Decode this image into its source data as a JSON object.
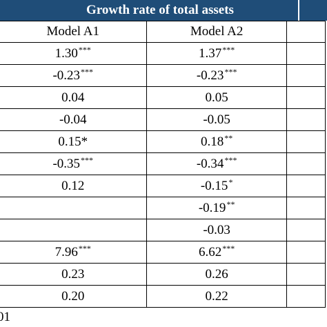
{
  "header": {
    "title": "Growth rate of total assets",
    "bar_color": "#1f4d78"
  },
  "columns": [
    "Model A1",
    "Model A2"
  ],
  "rows": [
    {
      "a1": {
        "value": "1.30",
        "sig": "***"
      },
      "a2": {
        "value": "1.37",
        "sig": "***"
      }
    },
    {
      "a1": {
        "value": "-0.23",
        "sig": "***"
      },
      "a2": {
        "value": "-0.23",
        "sig": "***"
      }
    },
    {
      "a1": {
        "value": "0.04",
        "sig": ""
      },
      "a2": {
        "value": "0.05",
        "sig": ""
      }
    },
    {
      "a1": {
        "value": "-0.04",
        "sig": ""
      },
      "a2": {
        "value": "-0.05",
        "sig": ""
      }
    },
    {
      "a1": {
        "value": "0.15*",
        "sig": ""
      },
      "a2": {
        "value": "0.18",
        "sig": "**"
      }
    },
    {
      "a1": {
        "value": "-0.35",
        "sig": "***"
      },
      "a2": {
        "value": "-0.34",
        "sig": "***"
      }
    },
    {
      "a1": {
        "value": "0.12",
        "sig": ""
      },
      "a2": {
        "value": "-0.15",
        "sig": "*"
      }
    },
    {
      "a1": {
        "value": "",
        "sig": ""
      },
      "a2": {
        "value": "-0.19",
        "sig": "**"
      }
    },
    {
      "a1": {
        "value": "",
        "sig": ""
      },
      "a2": {
        "value": "-0.03",
        "sig": ""
      }
    },
    {
      "a1": {
        "value": "7.96",
        "sig": "***"
      },
      "a2": {
        "value": "6.62",
        "sig": "***"
      }
    },
    {
      "a1": {
        "value": "0.23",
        "sig": ""
      },
      "a2": {
        "value": "0.26",
        "sig": ""
      }
    },
    {
      "a1": {
        "value": "0.20",
        "sig": ""
      },
      "a2": {
        "value": "0.22",
        "sig": ""
      }
    }
  ],
  "footnote": "01"
}
